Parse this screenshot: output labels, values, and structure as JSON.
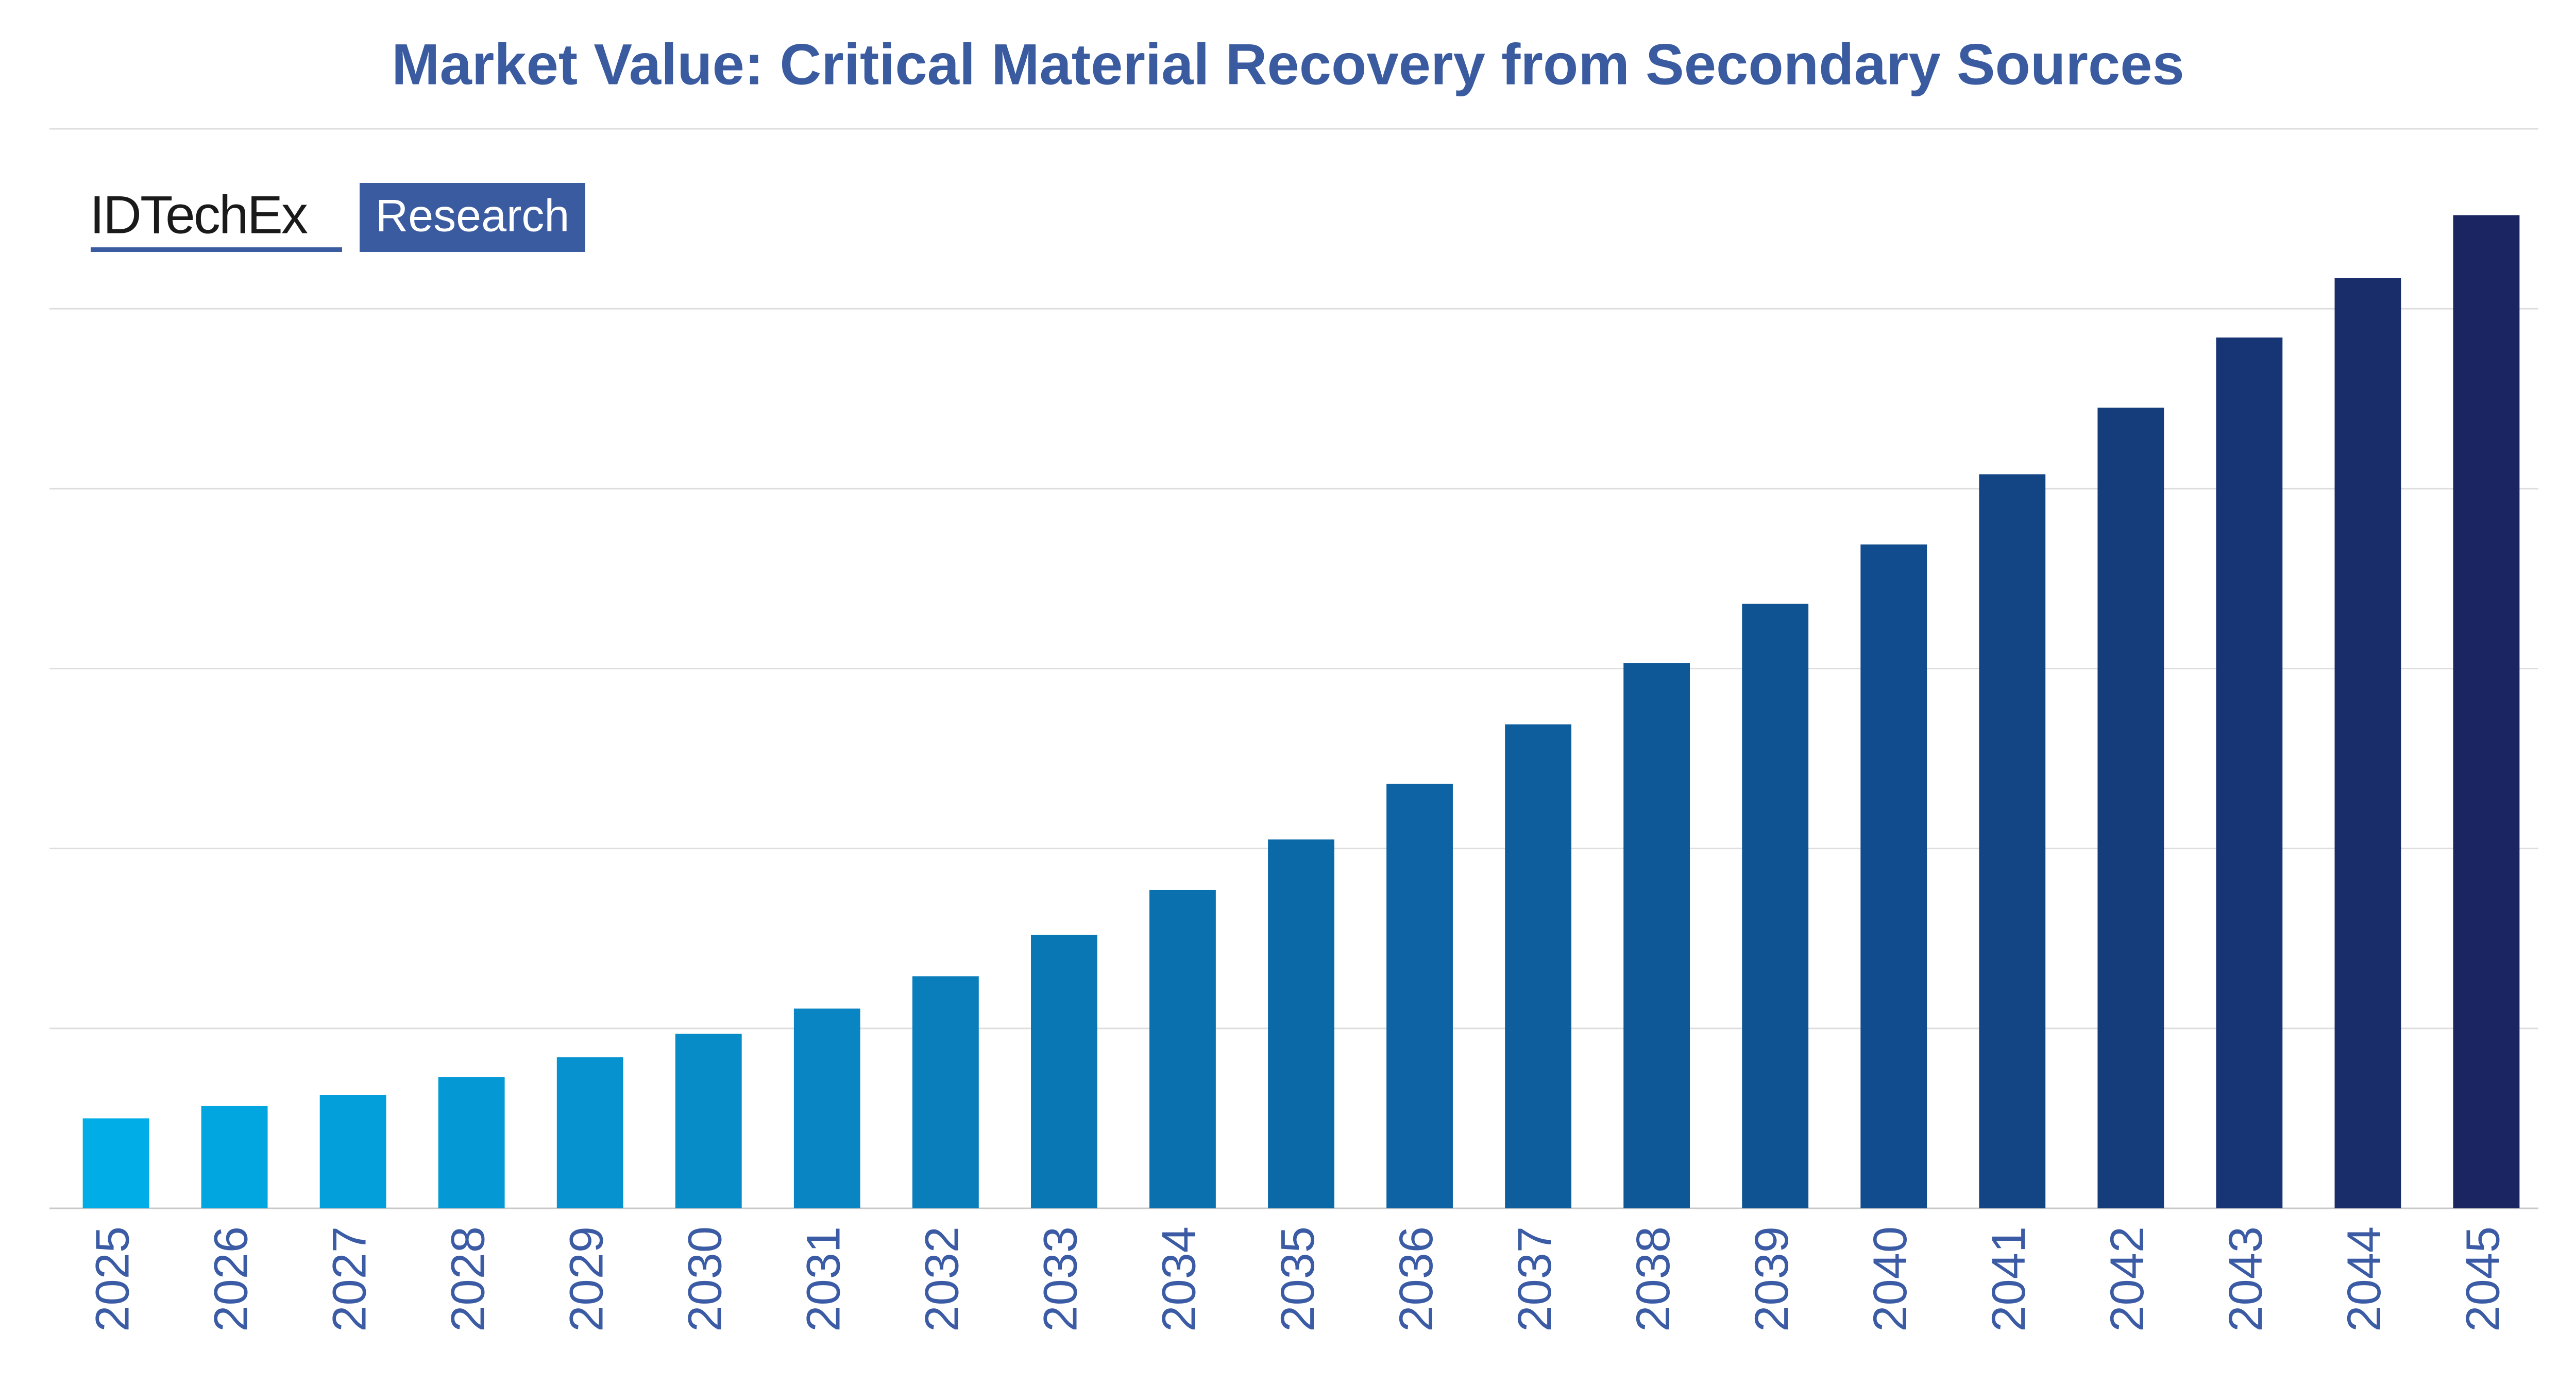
{
  "chart_data": {
    "type": "bar",
    "title": "Market Value: Critical Material Recovery from Secondary Sources",
    "logo": {
      "brand": "IDTechEx",
      "tag": "Research"
    },
    "categories": [
      "2025",
      "2026",
      "2027",
      "2028",
      "2029",
      "2030",
      "2031",
      "2032",
      "2033",
      "2034",
      "2035",
      "2036",
      "2037",
      "2038",
      "2039",
      "2040",
      "2041",
      "2042",
      "2043",
      "2044",
      "2045"
    ],
    "values": [
      0.5,
      0.57,
      0.63,
      0.73,
      0.84,
      0.97,
      1.11,
      1.29,
      1.52,
      1.77,
      2.05,
      2.36,
      2.69,
      3.03,
      3.36,
      3.69,
      4.08,
      4.45,
      4.84,
      5.17,
      5.52
    ],
    "colors": [
      "#00ade7",
      "#01a6e1",
      "#039fdb",
      "#0499d4",
      "#0692ce",
      "#078cc8",
      "#0885c2",
      "#097ebb",
      "#0a77b5",
      "#0b70ae",
      "#0c69a8",
      "#0d63a3",
      "#0e5e9e",
      "#0f5898",
      "#105393",
      "#114d8e",
      "#134585",
      "#153d7c",
      "#173574",
      "#192d6b",
      "#1b2562"
    ],
    "ylim": [
      0,
      6
    ],
    "yticks": [
      0,
      1,
      2,
      3,
      4,
      5,
      6
    ],
    "grid": true
  }
}
